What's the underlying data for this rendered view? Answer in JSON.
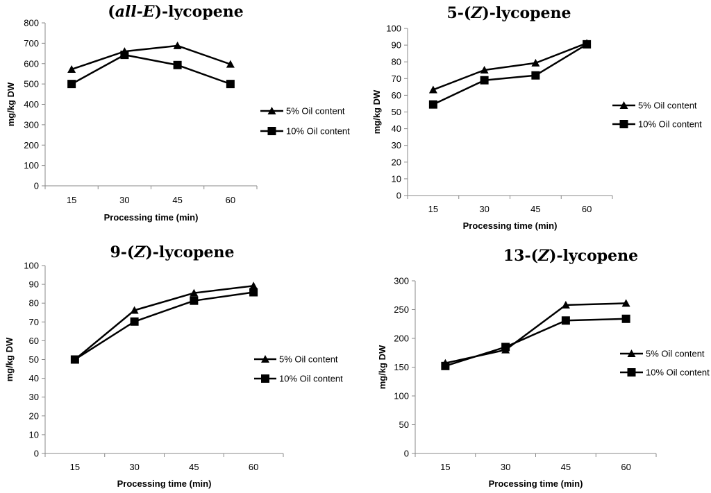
{
  "chart_data": [
    {
      "type": "line",
      "title_parts": [
        {
          "text": "(",
          "italic": false
        },
        {
          "text": "all-E",
          "italic": true
        },
        {
          "text": ")-lycopene",
          "italic": false
        }
      ],
      "xlabel": "Processing time (min)",
      "ylabel": "mg/kg DW",
      "categories": [
        "15",
        "30",
        "45",
        "60"
      ],
      "ylim": [
        0,
        800
      ],
      "ystep": 100,
      "legend_position": "right",
      "series": [
        {
          "name": "5% Oil content",
          "marker": "triangle",
          "values": [
            572,
            660,
            688,
            597
          ]
        },
        {
          "name": "10% Oil content",
          "marker": "square",
          "values": [
            500,
            643,
            593,
            500
          ]
        }
      ]
    },
    {
      "type": "line",
      "title_parts": [
        {
          "text": "5-(",
          "italic": false
        },
        {
          "text": "Z",
          "italic": true
        },
        {
          "text": ")-lycopene",
          "italic": false
        }
      ],
      "xlabel": "Processing time (min)",
      "ylabel": "mg/kg DW",
      "categories": [
        "15",
        "30",
        "45",
        "60"
      ],
      "ylim": [
        0,
        100
      ],
      "ystep": 10,
      "legend_position": "right",
      "series": [
        {
          "name": "5% Oil content",
          "marker": "triangle",
          "values": [
            63.3,
            75.1,
            79.3,
            91.2
          ]
        },
        {
          "name": "10% Oil content",
          "marker": "square",
          "values": [
            54.5,
            69.0,
            71.9,
            90.5
          ]
        }
      ]
    },
    {
      "type": "line",
      "title_parts": [
        {
          "text": "9-(",
          "italic": false
        },
        {
          "text": "Z",
          "italic": true
        },
        {
          "text": ")-lycopene",
          "italic": false
        }
      ],
      "xlabel": "Processing time (min)",
      "ylabel": "mg/kg DW",
      "categories": [
        "15",
        "30",
        "45",
        "60"
      ],
      "ylim": [
        0,
        100
      ],
      "ystep": 10,
      "legend_position": "right",
      "series": [
        {
          "name": "5% Oil content",
          "marker": "triangle",
          "values": [
            50,
            76.2,
            85.4,
            89.2
          ]
        },
        {
          "name": "10% Oil content",
          "marker": "square",
          "values": [
            50,
            70.2,
            81.3,
            85.8
          ]
        }
      ]
    },
    {
      "type": "line",
      "title_parts": [
        {
          "text": "13-(",
          "italic": false
        },
        {
          "text": "Z",
          "italic": true
        },
        {
          "text": ")-lycopene",
          "italic": false
        }
      ],
      "xlabel": "Processing time (min)",
      "ylabel": "mg/kg DW",
      "categories": [
        "15",
        "30",
        "45",
        "60"
      ],
      "ylim": [
        0,
        300
      ],
      "ystep": 50,
      "legend_position": "right",
      "series": [
        {
          "name": "5% Oil content",
          "marker": "triangle",
          "values": [
            157,
            180,
            258,
            261
          ]
        },
        {
          "name": "10% Oil content",
          "marker": "square",
          "values": [
            152,
            185,
            231,
            234
          ]
        }
      ]
    }
  ]
}
